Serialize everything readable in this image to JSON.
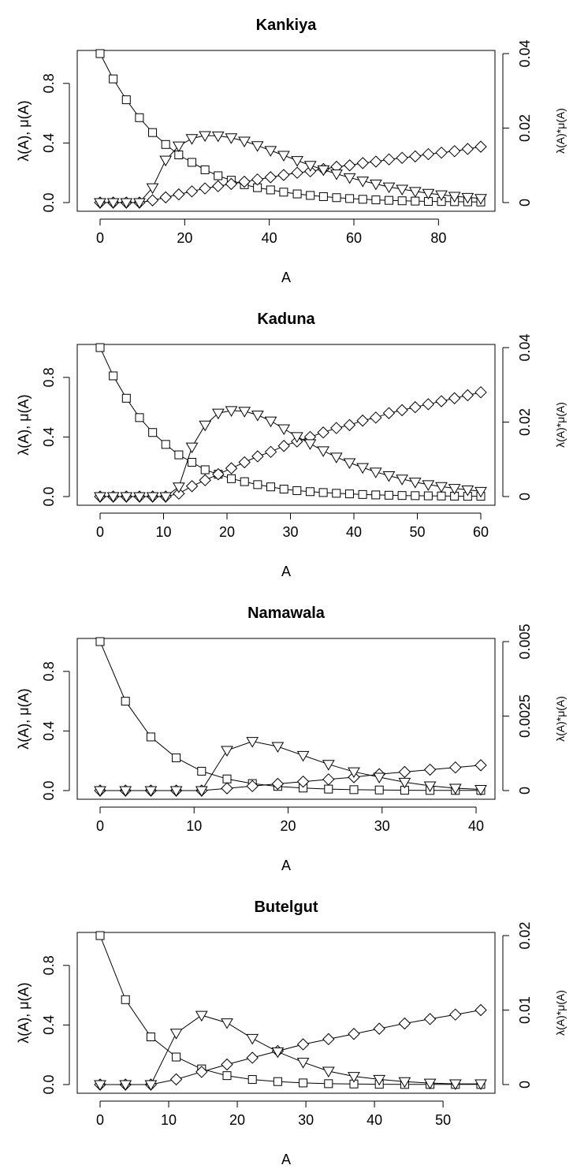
{
  "chart_data": [
    {
      "type": "line",
      "title": "Kankiya",
      "xlabel": "A",
      "ylabel": "λ(A), μ(A)",
      "ylabel2": "λ(A)*μ(A)",
      "xlim": [
        0,
        90
      ],
      "ylim": [
        0,
        1
      ],
      "ylim2": [
        0,
        0.04
      ],
      "xticks": [
        "0",
        "20",
        "40",
        "60",
        "80"
      ],
      "xtick_values": [
        0,
        20,
        40,
        60,
        80
      ],
      "yticks": [
        "0.0",
        "0.4",
        "0.8"
      ],
      "ytick_values": [
        0,
        0.4,
        0.8
      ],
      "y2ticks": [
        "0",
        "0.02",
        "0.04"
      ],
      "y2tick_values": [
        0,
        0.02,
        0.04
      ],
      "series": [
        {
          "marker": "square",
          "axis": "left",
          "x": [
            0,
            3.1,
            6.2,
            9.3,
            12.4,
            15.5,
            18.6,
            21.7,
            24.8,
            27.9,
            31,
            34.1,
            37.2,
            40.3,
            43.4,
            46.6,
            49.7,
            52.8,
            55.9,
            59,
            62.1,
            65.2,
            68.3,
            71.4,
            74.5,
            77.6,
            80.7,
            83.8,
            86.9,
            90
          ],
          "y": [
            1,
            0.83,
            0.69,
            0.57,
            0.47,
            0.39,
            0.32,
            0.27,
            0.22,
            0.18,
            0.15,
            0.12,
            0.1,
            0.085,
            0.07,
            0.058,
            0.048,
            0.04,
            0.033,
            0.027,
            0.022,
            0.018,
            0.015,
            0.012,
            0.01,
            0.008,
            0.007,
            0.006,
            0.005,
            0.004
          ]
        },
        {
          "marker": "diamond",
          "axis": "left",
          "x": [
            0,
            3.1,
            6.2,
            9.3,
            12.4,
            15.5,
            18.6,
            21.7,
            24.8,
            27.9,
            31,
            34.1,
            37.2,
            40.3,
            43.4,
            46.6,
            49.7,
            52.8,
            55.9,
            59,
            62.1,
            65.2,
            68.3,
            71.4,
            74.5,
            77.6,
            80.7,
            83.8,
            86.9,
            90
          ],
          "y": [
            0,
            0,
            0,
            0,
            0.015,
            0.035,
            0.055,
            0.075,
            0.095,
            0.11,
            0.125,
            0.14,
            0.155,
            0.17,
            0.185,
            0.2,
            0.21,
            0.225,
            0.24,
            0.25,
            0.265,
            0.275,
            0.29,
            0.3,
            0.31,
            0.325,
            0.335,
            0.345,
            0.36,
            0.375
          ]
        },
        {
          "marker": "triangle",
          "axis": "right",
          "x": [
            0,
            3.1,
            6.2,
            9.3,
            12.4,
            15.5,
            18.6,
            21.7,
            24.8,
            27.9,
            31,
            34.1,
            37.2,
            40.3,
            43.4,
            46.6,
            49.7,
            52.8,
            55.9,
            59,
            62.1,
            65.2,
            68.3,
            71.4,
            74.5,
            77.6,
            80.7,
            83.8,
            86.9,
            90
          ],
          "y": [
            0,
            0,
            0,
            0,
            0.004,
            0.0114,
            0.0152,
            0.0172,
            0.018,
            0.0179,
            0.0174,
            0.0165,
            0.0153,
            0.014,
            0.0127,
            0.0113,
            0.01,
            0.0088,
            0.0077,
            0.0067,
            0.0058,
            0.005,
            0.0042,
            0.0036,
            0.003,
            0.0025,
            0.0021,
            0.0017,
            0.0014,
            0.0011
          ]
        }
      ]
    },
    {
      "type": "line",
      "title": "Kaduna",
      "xlabel": "A",
      "ylabel": "λ(A), μ(A)",
      "ylabel2": "λ(A)*μ(A)",
      "xlim": [
        0,
        60
      ],
      "ylim": [
        0,
        1
      ],
      "ylim2": [
        0,
        0.04
      ],
      "xticks": [
        "0",
        "10",
        "20",
        "30",
        "40",
        "50",
        "60"
      ],
      "xtick_values": [
        0,
        10,
        20,
        30,
        40,
        50,
        60
      ],
      "yticks": [
        "0.0",
        "0.4",
        "0.8"
      ],
      "ytick_values": [
        0,
        0.4,
        0.8
      ],
      "y2ticks": [
        "0",
        "0.02",
        "0.04"
      ],
      "y2tick_values": [
        0,
        0.02,
        0.04
      ],
      "series": [
        {
          "marker": "square",
          "axis": "left",
          "x": [
            0,
            2.07,
            4.14,
            6.21,
            8.28,
            10.34,
            12.41,
            14.48,
            16.55,
            18.62,
            20.69,
            22.76,
            24.83,
            26.9,
            28.97,
            31.03,
            33.1,
            35.17,
            37.24,
            39.31,
            41.38,
            43.45,
            45.52,
            47.59,
            49.66,
            51.72,
            53.79,
            55.86,
            57.93,
            60
          ],
          "y": [
            1,
            0.81,
            0.66,
            0.53,
            0.43,
            0.35,
            0.28,
            0.23,
            0.18,
            0.15,
            0.12,
            0.1,
            0.08,
            0.065,
            0.05,
            0.04,
            0.033,
            0.027,
            0.022,
            0.018,
            0.014,
            0.011,
            0.009,
            0.007,
            0.006,
            0.005,
            0.004,
            0.003,
            0.002,
            0.002
          ]
        },
        {
          "marker": "diamond",
          "axis": "left",
          "x": [
            0,
            2.07,
            4.14,
            6.21,
            8.28,
            10.34,
            12.41,
            14.48,
            16.55,
            18.62,
            20.69,
            22.76,
            24.83,
            26.9,
            28.97,
            31.03,
            33.1,
            35.17,
            37.24,
            39.31,
            41.38,
            43.45,
            45.52,
            47.59,
            49.66,
            51.72,
            53.79,
            55.86,
            57.93,
            60
          ],
          "y": [
            0,
            0,
            0,
            0,
            0,
            0,
            0.02,
            0.07,
            0.11,
            0.15,
            0.19,
            0.23,
            0.27,
            0.3,
            0.34,
            0.37,
            0.4,
            0.43,
            0.46,
            0.48,
            0.51,
            0.53,
            0.56,
            0.58,
            0.6,
            0.62,
            0.64,
            0.66,
            0.68,
            0.7
          ]
        },
        {
          "marker": "triangle",
          "axis": "right",
          "x": [
            0,
            2.07,
            4.14,
            6.21,
            8.28,
            10.34,
            12.41,
            14.48,
            16.55,
            18.62,
            20.69,
            22.76,
            24.83,
            26.9,
            28.97,
            31.03,
            33.1,
            35.17,
            37.24,
            39.31,
            41.38,
            43.45,
            45.52,
            47.59,
            49.66,
            51.72,
            53.79,
            55.86,
            57.93,
            60
          ],
          "y": [
            0,
            0,
            0,
            0,
            0,
            0,
            0.0026,
            0.0133,
            0.0192,
            0.0224,
            0.0231,
            0.0229,
            0.0219,
            0.0203,
            0.0182,
            0.0161,
            0.0142,
            0.0123,
            0.0106,
            0.0091,
            0.0078,
            0.0066,
            0.0056,
            0.0047,
            0.0039,
            0.0032,
            0.0027,
            0.0022,
            0.0018,
            0.0014
          ]
        }
      ]
    },
    {
      "type": "line",
      "title": "Namawala",
      "xlabel": "A",
      "ylabel": "λ(A), μ(A)",
      "ylabel2": "λ(A)*μ(A)",
      "xlim": [
        0,
        40.5
      ],
      "ylim": [
        0,
        1
      ],
      "ylim2": [
        0,
        0.005
      ],
      "xticks": [
        "0",
        "10",
        "20",
        "30",
        "40"
      ],
      "xtick_values": [
        0,
        10,
        20,
        30,
        40
      ],
      "yticks": [
        "0.0",
        "0.4",
        "0.8"
      ],
      "ytick_values": [
        0,
        0.4,
        0.8
      ],
      "y2ticks": [
        "0",
        "0.0025",
        "0.005"
      ],
      "y2tick_values": [
        0,
        0.0025,
        0.005
      ],
      "series": [
        {
          "marker": "square",
          "axis": "left",
          "x": [
            0,
            2.7,
            5.4,
            8.1,
            10.8,
            13.5,
            16.2,
            18.9,
            21.6,
            24.3,
            27,
            29.7,
            32.4,
            35.1,
            37.8,
            40.5
          ],
          "y": [
            1,
            0.6,
            0.36,
            0.22,
            0.13,
            0.078,
            0.047,
            0.028,
            0.017,
            0.01,
            0.006,
            0.004,
            0.002,
            0.001,
            0.001,
            0.001
          ]
        },
        {
          "marker": "diamond",
          "axis": "left",
          "x": [
            0,
            2.7,
            5.4,
            8.1,
            10.8,
            13.5,
            16.2,
            18.9,
            21.6,
            24.3,
            27,
            29.7,
            32.4,
            35.1,
            37.8,
            40.5
          ],
          "y": [
            0,
            0,
            0,
            0,
            0,
            0.015,
            0.03,
            0.045,
            0.06,
            0.075,
            0.09,
            0.11,
            0.125,
            0.14,
            0.155,
            0.17
          ]
        },
        {
          "marker": "triangle",
          "axis": "right",
          "x": [
            0,
            2.7,
            5.4,
            8.1,
            10.8,
            13.5,
            16.2,
            18.9,
            21.6,
            24.3,
            27,
            29.7,
            32.4,
            35.1,
            37.8,
            40.5
          ],
          "y": [
            0,
            0,
            0,
            0,
            0,
            0.00135,
            0.00165,
            0.00148,
            0.00118,
            0.00088,
            0.00063,
            0.00045,
            0.00028,
            0.00016,
            8e-05,
            4e-05
          ]
        }
      ]
    },
    {
      "type": "line",
      "title": "Butelgut",
      "xlabel": "A",
      "ylabel": "λ(A), μ(A)",
      "ylabel2": "λ(A)*μ(A)",
      "xlim": [
        0,
        55.5
      ],
      "ylim": [
        0,
        1
      ],
      "ylim2": [
        0,
        0.02
      ],
      "xticks": [
        "0",
        "10",
        "20",
        "30",
        "40",
        "50"
      ],
      "xtick_values": [
        0,
        10,
        20,
        30,
        40,
        50
      ],
      "yticks": [
        "0.0",
        "0.4",
        "0.8"
      ],
      "ytick_values": [
        0,
        0.4,
        0.8
      ],
      "y2ticks": [
        "0",
        "0.01",
        "0.02"
      ],
      "y2tick_values": [
        0,
        0.01,
        0.02
      ],
      "series": [
        {
          "marker": "square",
          "axis": "left",
          "x": [
            0,
            3.7,
            7.4,
            11.1,
            14.8,
            18.5,
            22.2,
            25.9,
            29.6,
            33.3,
            37,
            40.7,
            44.4,
            48.1,
            51.8,
            55.5
          ],
          "y": [
            1,
            0.57,
            0.32,
            0.185,
            0.105,
            0.06,
            0.034,
            0.02,
            0.011,
            0.006,
            0.004,
            0.002,
            0.001,
            0.001,
            0.001,
            0.001
          ]
        },
        {
          "marker": "diamond",
          "axis": "left",
          "x": [
            0,
            3.7,
            7.4,
            11.1,
            14.8,
            18.5,
            22.2,
            25.9,
            29.6,
            33.3,
            37,
            40.7,
            44.4,
            48.1,
            51.8,
            55.5
          ],
          "y": [
            0,
            0,
            0,
            0.035,
            0.085,
            0.135,
            0.18,
            0.225,
            0.27,
            0.305,
            0.34,
            0.375,
            0.41,
            0.44,
            0.47,
            0.5
          ]
        },
        {
          "marker": "triangle",
          "axis": "right",
          "x": [
            0,
            3.7,
            7.4,
            11.1,
            14.8,
            18.5,
            22.2,
            25.9,
            29.6,
            33.3,
            37,
            40.7,
            44.4,
            48.1,
            51.8,
            55.5
          ],
          "y": [
            0,
            0,
            0,
            0.0069,
            0.0093,
            0.0083,
            0.0062,
            0.0044,
            0.003,
            0.0018,
            0.0011,
            0.0007,
            0.0004,
            0.0002,
            0.0001,
            0.0001
          ]
        }
      ]
    }
  ]
}
